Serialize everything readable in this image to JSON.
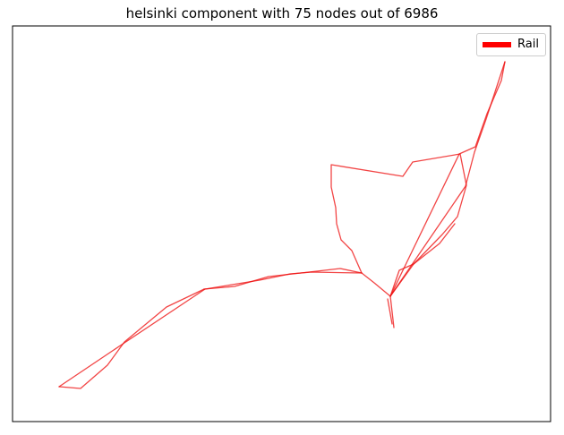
{
  "figure": {
    "title": "helsinki component with 75 nodes out of 6986"
  },
  "legend": {
    "items": [
      {
        "label": "Rail",
        "color": "#ff0000"
      }
    ]
  },
  "network": {
    "edge_color": "#ee1111",
    "edge_opacity": 0.78
  }
}
